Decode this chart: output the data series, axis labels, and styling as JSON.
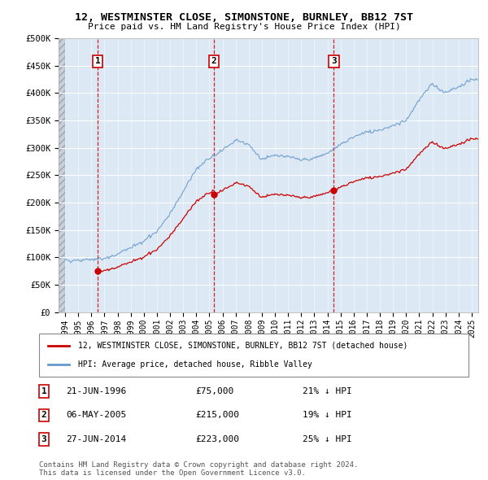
{
  "title": "12, WESTMINSTER CLOSE, SIMONSTONE, BURNLEY, BB12 7ST",
  "subtitle": "Price paid vs. HM Land Registry's House Price Index (HPI)",
  "legend_property": "12, WESTMINSTER CLOSE, SIMONSTONE, BURNLEY, BB12 7ST (detached house)",
  "legend_hpi": "HPI: Average price, detached house, Ribble Valley",
  "footer1": "Contains HM Land Registry data © Crown copyright and database right 2024.",
  "footer2": "This data is licensed under the Open Government Licence v3.0.",
  "transactions": [
    {
      "num": 1,
      "date": "21-JUN-1996",
      "price": 75000,
      "pct": "21%",
      "dir": "↓",
      "year": 1996.47
    },
    {
      "num": 2,
      "date": "06-MAY-2005",
      "price": 215000,
      "pct": "19%",
      "dir": "↓",
      "year": 2005.35
    },
    {
      "num": 3,
      "date": "27-JUN-2014",
      "price": 223000,
      "pct": "25%",
      "dir": "↓",
      "year": 2014.49
    }
  ],
  "property_color": "#cc0000",
  "hpi_color": "#6699cc",
  "dashed_color": "#cc0000",
  "background_plot": "#dce8f4",
  "background_hatch_color": "#c8cfd8",
  "ylim": [
    0,
    500000
  ],
  "xmin": 1993.5,
  "xmax": 2025.5,
  "yticks": [
    0,
    50000,
    100000,
    150000,
    200000,
    250000,
    300000,
    350000,
    400000,
    450000,
    500000
  ],
  "ytick_labels": [
    "£0",
    "£50K",
    "£100K",
    "£150K",
    "£200K",
    "£250K",
    "£300K",
    "£350K",
    "£400K",
    "£450K",
    "£500K"
  ]
}
